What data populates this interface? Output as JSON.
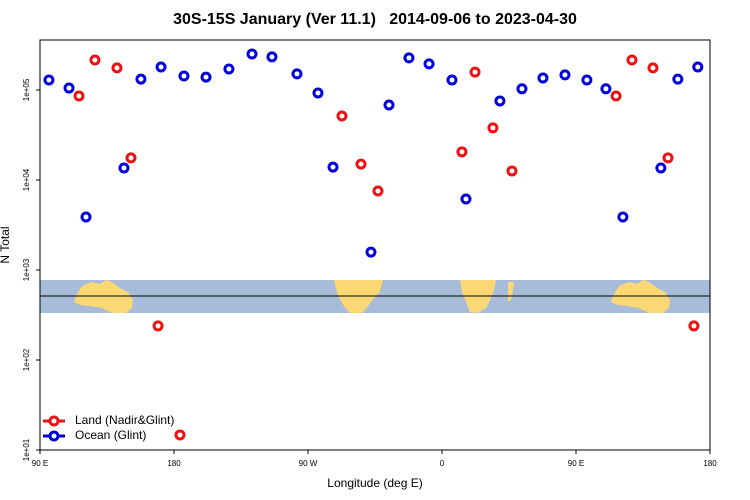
{
  "chart_data": {
    "type": "scatter",
    "title": "30S-15S January (Ver 11.1)   2014-09-06 to 2023-04-30",
    "xlabel": "Longitude (deg E)",
    "ylabel": "N Total",
    "xlim": [
      90,
      540
    ],
    "ylim": [
      10,
      359000
    ],
    "ylog": true,
    "xticks": [
      {
        "value": 90,
        "label": "90 E"
      },
      180,
      {
        "value": 270,
        "label": "90 W"
      },
      {
        "value": 360,
        "label": "0"
      },
      {
        "value": 450,
        "label": "90 E"
      },
      {
        "value": 540,
        "label": "180"
      }
    ],
    "yticks": [
      {
        "value": 10,
        "label": "1e+01"
      },
      {
        "value": 100,
        "label": "1e+02"
      },
      {
        "value": 1000,
        "label": "1e+03"
      },
      {
        "value": 10000,
        "label": "1e+04"
      },
      {
        "value": 100000,
        "label": "1e+05"
      }
    ],
    "legend": "bottom-left",
    "series": [
      {
        "name": "Land (Nadir&Glint)",
        "color": "#ee1111",
        "x": [
          116.2,
          126.9,
          141.7,
          151.1,
          169.3,
          184.0,
          292.8,
          305.6,
          317.0,
          373.4,
          382.2,
          394.2,
          407.0,
          476.9,
          487.6,
          501.7,
          511.8,
          529.2
        ],
        "values": [
          85700,
          215000,
          176000,
          17600,
          239,
          14.7,
          51400,
          15000,
          7550,
          20500,
          158000,
          37900,
          12600,
          85700,
          215000,
          176000,
          17600,
          239
        ]
      },
      {
        "name": "Ocean (Glint)",
        "color": "#0000dd",
        "x": [
          96.0,
          109.5,
          120.9,
          146.4,
          157.8,
          171.3,
          186.7,
          201.5,
          216.9,
          232.4,
          245.8,
          262.6,
          276.7,
          286.8,
          312.3,
          324.4,
          337.8,
          351.3,
          366.7,
          376.1,
          398.9,
          413.7,
          427.8,
          442.6,
          457.3,
          470.1,
          481.5,
          507.0,
          518.4,
          531.8
        ],
        "values": [
          129000,
          105000,
          3880,
          13600,
          132000,
          180000,
          143000,
          139000,
          171000,
          251000,
          233000,
          151000,
          92600,
          13900,
          1580,
          68100,
          227000,
          195000,
          129000,
          6150,
          75500,
          103000,
          136000,
          147000,
          129000,
          103000,
          3880,
          13600,
          132000,
          180000
        ]
      }
    ]
  }
}
